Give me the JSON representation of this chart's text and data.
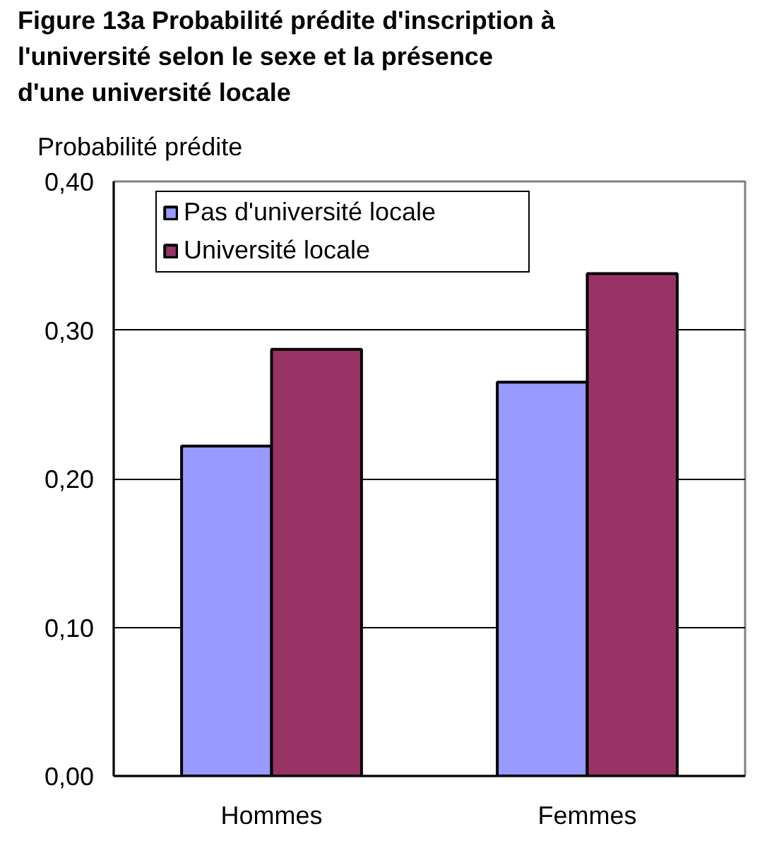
{
  "chart_data": {
    "type": "bar",
    "title": "Figure 13a Probabilité prédite d'inscription à l'université selon le sexe et la présence d'une université locale",
    "ylabel": "Probabilité prédite",
    "categories": [
      "Hommes",
      "Femmes"
    ],
    "series": [
      {
        "name": "Pas d'université locale",
        "color": "#9999ff",
        "values": [
          0.222,
          0.265
        ]
      },
      {
        "name": "Université locale",
        "color": "#993366",
        "values": [
          0.287,
          0.338
        ]
      }
    ],
    "ylim": [
      0,
      0.4
    ],
    "yticks": [
      {
        "value": 0,
        "label": "0,00"
      },
      {
        "value": 0.1,
        "label": "0,10"
      },
      {
        "value": 0.2,
        "label": "0,20"
      },
      {
        "value": 0.3,
        "label": "0,30"
      },
      {
        "value": 0.4,
        "label": "0,40"
      }
    ],
    "grid": "y",
    "legend": "top left"
  }
}
